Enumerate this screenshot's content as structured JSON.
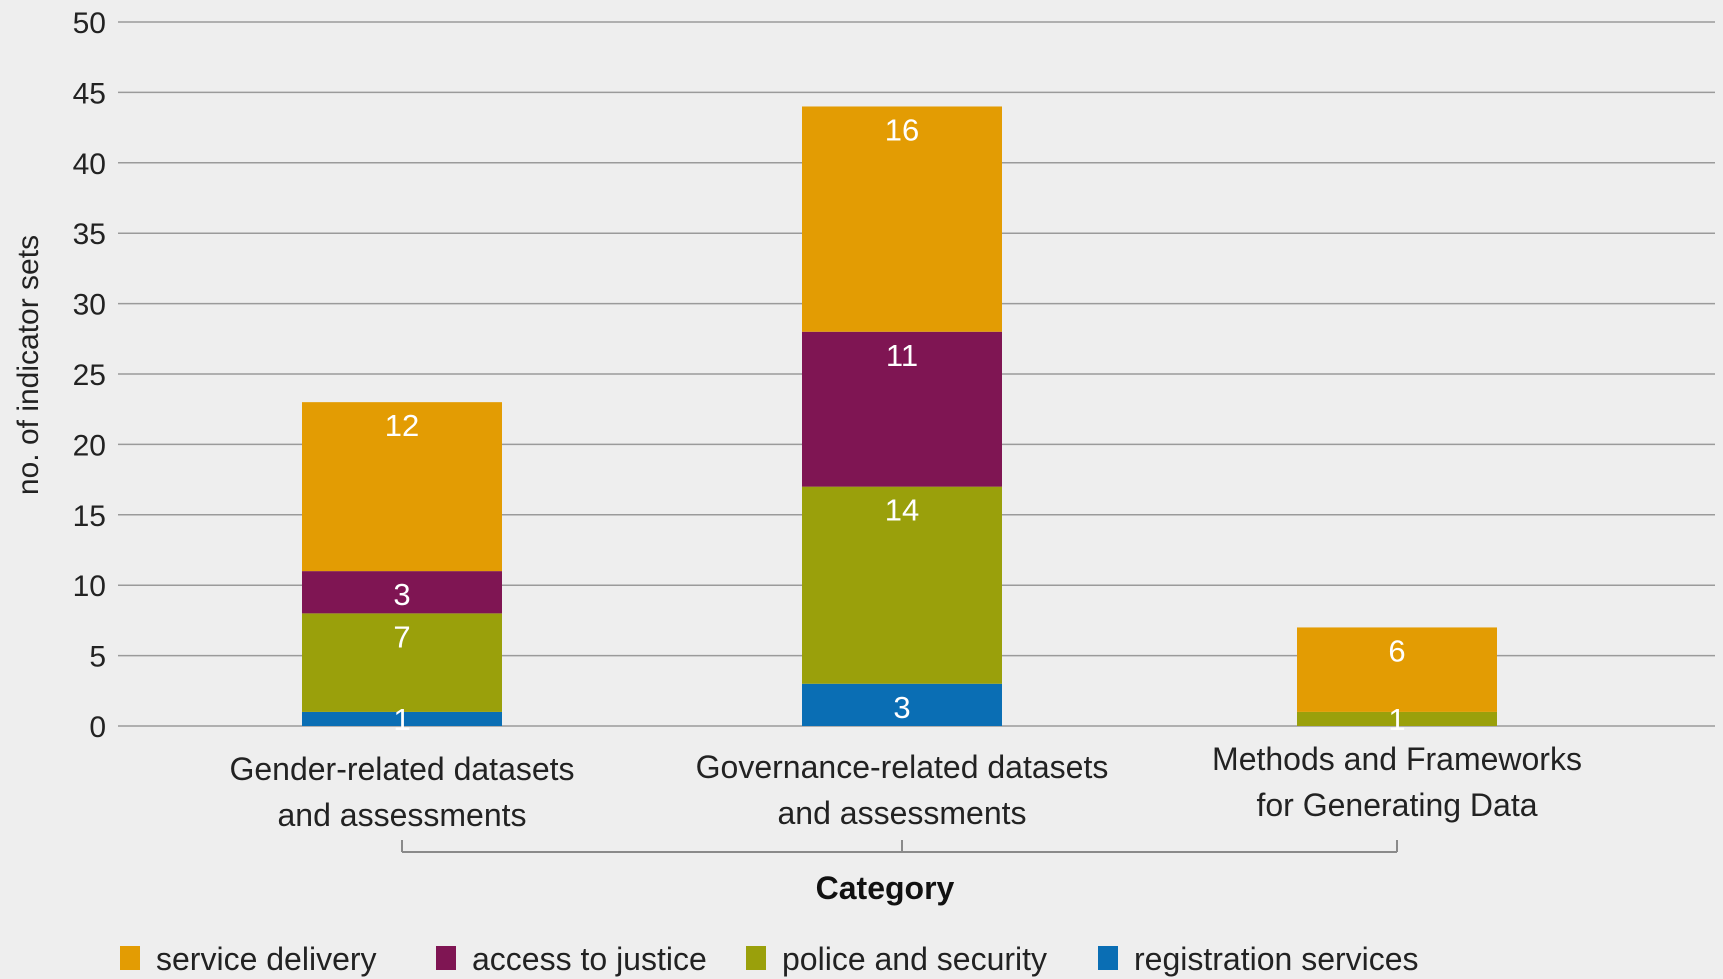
{
  "chart_data": {
    "type": "bar",
    "stacked": true,
    "title": "",
    "xlabel": "Category",
    "ylabel": "no. of indicator sets",
    "ylim": [
      0,
      50
    ],
    "yticks": [
      0,
      5,
      10,
      15,
      20,
      25,
      30,
      35,
      40,
      45,
      50
    ],
    "grid": true,
    "legend_position": "bottom",
    "categories": [
      [
        "Gender-related datasets",
        "and assessments"
      ],
      [
        "Governance-related datasets",
        "and assessments"
      ],
      [
        "Methods and Frameworks",
        "for Generating Data"
      ]
    ],
    "series": [
      {
        "name": "registration services",
        "color": "#0a6eb4",
        "values": [
          1,
          3,
          0
        ],
        "labels": [
          "1",
          "3",
          ""
        ]
      },
      {
        "name": "police and security",
        "color": "#9aa00b",
        "values": [
          7,
          14,
          1
        ],
        "labels": [
          "7",
          "14",
          "1"
        ]
      },
      {
        "name": "access to justice",
        "color": "#7f1553",
        "values": [
          3,
          11,
          0
        ],
        "labels": [
          "3",
          "11",
          ""
        ]
      },
      {
        "name": "service delivery",
        "color": "#e39c03",
        "values": [
          12,
          16,
          6
        ],
        "labels": [
          "12",
          "16",
          "6"
        ]
      }
    ],
    "legend_order": [
      "service delivery",
      "access to justice",
      "police and security",
      "registration services"
    ]
  }
}
